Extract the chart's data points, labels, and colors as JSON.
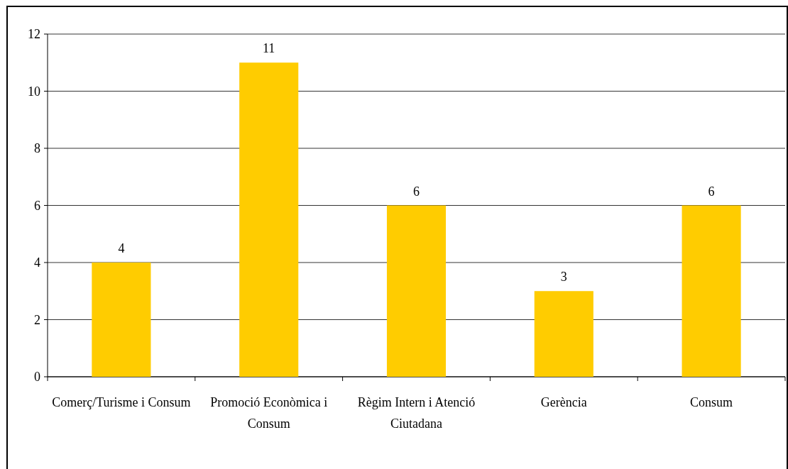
{
  "chart_data": {
    "type": "bar",
    "categories": [
      "Comerç/Turisme i Consum",
      "Promoció Econòmica i Consum",
      "Règim Intern i Atenció Ciutadana",
      "Gerència",
      "Consum"
    ],
    "values": [
      4,
      11,
      6,
      3,
      6
    ],
    "color": "#ffcc00",
    "ylim": [
      0,
      12
    ],
    "yticks": [
      0,
      2,
      4,
      6,
      8,
      10,
      12
    ],
    "grid": "y",
    "data_labels": true
  }
}
